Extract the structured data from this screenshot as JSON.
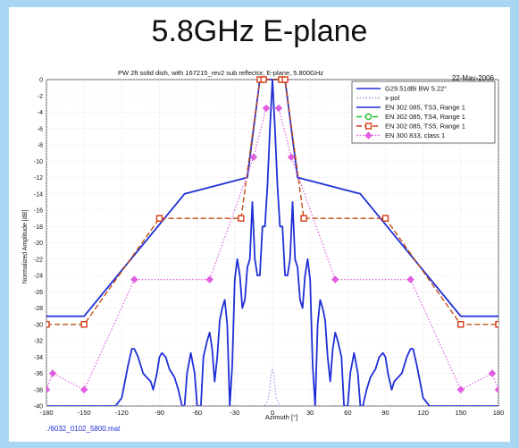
{
  "slide": {
    "title": "5.8GHz E-plane"
  },
  "chart_data": {
    "type": "line",
    "title": "PW 2ft solid dish, with 167215_rev2 sub reflector, E-plane,  5.800GHz",
    "date": "22-May-2006",
    "xlabel": "Azimuth [°]",
    "ylabel": "Normalized Amplitude [dB]",
    "file_label": "./6032_0102_5800.mat",
    "xlim": [
      -180,
      180
    ],
    "ylim": [
      -40,
      0
    ],
    "xticks": [
      -180,
      -150,
      -120,
      -90,
      -60,
      -30,
      0,
      30,
      60,
      90,
      120,
      150,
      180
    ],
    "yticks": [
      0,
      -2,
      -4,
      -6,
      -8,
      -10,
      -12,
      -14,
      -16,
      -18,
      -20,
      -22,
      -24,
      -26,
      -28,
      -30,
      -32,
      -34,
      -36,
      -38,
      -40
    ],
    "grid": true,
    "legend_position": "top-right",
    "series": [
      {
        "name": "G29.51dBi BW 5.22°",
        "color": "#1f2fd6",
        "style": "solid",
        "x": [
          -180,
          -175,
          -170,
          -165,
          -160,
          -155,
          -150,
          -145,
          -140,
          -135,
          -130,
          -125,
          -120,
          -115,
          -112,
          -110,
          -107,
          -103,
          -100,
          -97,
          -95,
          -92,
          -90,
          -88,
          -85,
          -82,
          -80,
          -78,
          -75,
          -72,
          -70,
          -68,
          -65,
          -62,
          -60,
          -57,
          -55,
          -52,
          -50,
          -48,
          -46,
          -44,
          -42,
          -40,
          -38,
          -36,
          -34,
          -32,
          -30,
          -28,
          -26,
          -24,
          -22,
          -20,
          -18,
          -16,
          -14,
          -12,
          -10,
          -8,
          -6,
          -4,
          -2,
          0,
          2,
          4,
          6,
          8,
          10,
          12,
          14,
          16,
          18,
          20,
          22,
          24,
          26,
          28,
          30,
          32,
          34,
          36,
          38,
          40,
          42,
          44,
          46,
          48,
          50,
          52,
          55,
          57,
          60,
          62,
          65,
          68,
          70,
          72,
          75,
          78,
          80,
          82,
          85,
          88,
          90,
          92,
          95,
          97,
          100,
          103,
          107,
          110,
          112,
          115,
          120,
          125,
          130,
          135,
          140,
          145,
          150,
          155,
          160,
          165,
          170,
          175,
          180
        ],
        "y": [
          -40,
          -40,
          -40,
          -40,
          -40,
          -40,
          -40,
          -40,
          -40,
          -40,
          -40,
          -40,
          -39,
          -35,
          -33,
          -33,
          -34,
          -36,
          -36.5,
          -37,
          -38,
          -36,
          -34,
          -33.5,
          -34,
          -35.5,
          -36,
          -36.5,
          -38,
          -40,
          -40,
          -36,
          -33.5,
          -36,
          -40,
          -40,
          -34,
          -32,
          -31,
          -33,
          -37,
          -34,
          -29.5,
          -28,
          -27,
          -30,
          -40,
          -35,
          -24.5,
          -22,
          -24,
          -28,
          -27,
          -23,
          -22,
          -15,
          -22,
          -24,
          -24,
          -18,
          -18,
          -13,
          -6,
          0,
          -6,
          -13,
          -18,
          -18,
          -24,
          -24,
          -22,
          -15,
          -22,
          -23,
          -27,
          -28,
          -24,
          -22,
          -24.5,
          -35,
          -40,
          -30,
          -27,
          -28,
          -29.5,
          -34,
          -37,
          -33,
          -31,
          -32,
          -34,
          -40,
          -40,
          -36,
          -33.5,
          -36,
          -40,
          -40,
          -38,
          -36.5,
          -36,
          -35.5,
          -34,
          -33.5,
          -34,
          -36,
          -38,
          -37,
          -36.5,
          -36,
          -34,
          -33,
          -33,
          -35,
          -39,
          -40,
          -40,
          -40,
          -40,
          -40,
          -40,
          -40,
          -40,
          -40,
          -40,
          -40,
          -40
        ]
      },
      {
        "name": "x-pol",
        "color": "#9a9ad8",
        "style": "dotted",
        "x": [
          -180,
          -10,
          -6,
          -3,
          -1,
          0,
          1,
          3,
          6,
          10,
          180
        ],
        "y": [
          -40,
          -40,
          -40,
          -39,
          -36,
          -35.5,
          -36,
          -39,
          -40,
          -40,
          -40
        ]
      },
      {
        "name": "EN 302 085, TS3, Range 1",
        "color": "#1f2fd6",
        "style": "solid",
        "x": [
          -180,
          -150,
          -70,
          -20,
          -10,
          -5,
          5,
          10,
          20,
          70,
          150,
          180
        ],
        "y": [
          -29,
          -29,
          -14,
          -12,
          0,
          0,
          0,
          0,
          -12,
          -14,
          -29,
          -29
        ]
      },
      {
        "name": "EN 302 085, TS4, Range 1",
        "color": "#22c322",
        "style": "dashed",
        "marker": "circle",
        "x": [
          -180,
          -150,
          -90,
          -25,
          -10,
          -7,
          7,
          10,
          25,
          90,
          150,
          180
        ],
        "y": [
          -30,
          -30,
          -17,
          -17,
          0,
          0,
          0,
          0,
          -17,
          -17,
          -30,
          -30
        ]
      },
      {
        "name": "EN 302 085, TS5, Range 1",
        "color": "#d83a14",
        "style": "dashed",
        "marker": "square",
        "x": [
          -180,
          -150,
          -90,
          -25,
          -10,
          -7,
          7,
          10,
          25,
          90,
          150,
          180
        ],
        "y": [
          -30,
          -30,
          -17,
          -17,
          0,
          0,
          0,
          0,
          -17,
          -17,
          -30,
          -30
        ]
      },
      {
        "name": "EN 300 833, class 1",
        "color": "#e05ce0",
        "style": "dotted",
        "marker": "diamond",
        "x": [
          -180,
          -175,
          -150,
          -110,
          -50,
          -15,
          -5,
          5,
          15,
          50,
          110,
          150,
          175,
          180
        ],
        "y": [
          -38,
          -36,
          -38,
          -24.5,
          -24.5,
          -9.5,
          -3.5,
          -3.5,
          -9.5,
          -24.5,
          -24.5,
          -38,
          -36,
          -38
        ]
      }
    ]
  }
}
